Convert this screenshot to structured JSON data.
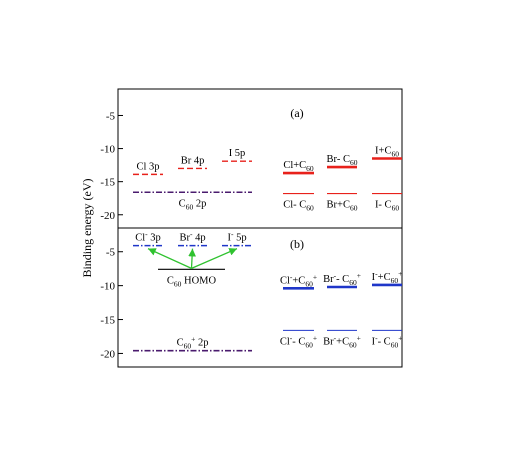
{
  "chart_data": {
    "type": "energy-level-diagram",
    "ylabel": "Binding energy (eV)",
    "panels": [
      {
        "id": "a",
        "label": "(a)",
        "ylim": [
          -22,
          -1
        ],
        "yticks": [
          -5,
          -10,
          -15,
          -20
        ],
        "levels": [
          {
            "name": "Cl 3p",
            "parts": [
              {
                "t": "Cl 3p"
              }
            ],
            "energy": -13.9,
            "color": "#e8211b",
            "style": "dash",
            "col": 0
          },
          {
            "name": "Br 4p",
            "parts": [
              {
                "t": "Br 4p"
              }
            ],
            "energy": -13.0,
            "color": "#e8211b",
            "style": "dash",
            "col": 1
          },
          {
            "name": "I 5p",
            "parts": [
              {
                "t": "I 5p"
              }
            ],
            "energy": -11.9,
            "color": "#e8211b",
            "style": "dash",
            "col": 2
          },
          {
            "name": "C60 2p",
            "parts": [
              {
                "t": "C"
              },
              {
                "t": "60",
                "sub": true
              },
              {
                "t": " 2p"
              }
            ],
            "energy": -16.6,
            "color": "#4a1b6e",
            "style": "dashdot",
            "span": [
              0,
              2
            ],
            "labelBelow": true
          },
          {
            "name": "Cl+C60",
            "parts": [
              {
                "t": "Cl+C"
              },
              {
                "t": "60",
                "sub": true
              }
            ],
            "energy": -13.7,
            "color": "#e8211b",
            "style": "solid-thick",
            "col": 3
          },
          {
            "name": "Br-C60",
            "parts": [
              {
                "t": "Br- C"
              },
              {
                "t": "60",
                "sub": true
              }
            ],
            "energy": -12.8,
            "color": "#e8211b",
            "style": "solid-thick",
            "col": 4
          },
          {
            "name": "I+C60",
            "parts": [
              {
                "t": "I+C"
              },
              {
                "t": "60",
                "sub": true
              }
            ],
            "energy": -11.5,
            "color": "#e8211b",
            "style": "solid-thick",
            "col": 5
          },
          {
            "name": "Cl-C60",
            "parts": [
              {
                "t": "Cl- C"
              },
              {
                "t": "60",
                "sub": true
              }
            ],
            "energy": -16.8,
            "color": "#e8211b",
            "style": "solid-thin",
            "col": 3,
            "labelBelow": true
          },
          {
            "name": "Br+C60",
            "parts": [
              {
                "t": "Br+C"
              },
              {
                "t": "60",
                "sub": true
              }
            ],
            "energy": -16.8,
            "color": "#e8211b",
            "style": "solid-thin",
            "col": 4,
            "labelBelow": true
          },
          {
            "name": "I-C60",
            "parts": [
              {
                "t": "I- C"
              },
              {
                "t": "60",
                "sub": true
              }
            ],
            "energy": -16.8,
            "color": "#e8211b",
            "style": "solid-thin",
            "col": 5,
            "labelBelow": true
          }
        ]
      },
      {
        "id": "b",
        "label": "(b)",
        "ylim": [
          -22,
          -1.5
        ],
        "yticks": [
          -5,
          -10,
          -15,
          -20
        ],
        "levels": [
          {
            "name": "Cl- 3p",
            "parts": [
              {
                "t": "Cl"
              },
              {
                "t": "-",
                "sup": true
              },
              {
                "t": " 3p"
              }
            ],
            "energy": -4.1,
            "color": "#1f36c9",
            "style": "dashdot",
            "col": 0
          },
          {
            "name": "Br- 4p",
            "parts": [
              {
                "t": "Br"
              },
              {
                "t": "-",
                "sup": true
              },
              {
                "t": " 4p"
              }
            ],
            "energy": -4.1,
            "color": "#1f36c9",
            "style": "dashdot",
            "col": 1
          },
          {
            "name": "I- 5p",
            "parts": [
              {
                "t": "I"
              },
              {
                "t": "-",
                "sup": true
              },
              {
                "t": " 5p"
              }
            ],
            "energy": -4.1,
            "color": "#1f36c9",
            "style": "dashdot",
            "col": 2
          },
          {
            "name": "C60 HOMO",
            "parts": [
              {
                "t": "C"
              },
              {
                "t": "60",
                "sub": true
              },
              {
                "t": " HOMO"
              }
            ],
            "energy": -7.6,
            "color": "#000000",
            "style": "solid-thin",
            "col": 1,
            "wide": true,
            "labelBelow": true
          },
          {
            "name": "C60+ 2p",
            "parts": [
              {
                "t": "C"
              },
              {
                "t": "60",
                "sub": true
              },
              {
                "t": "+",
                "sup": true
              },
              {
                "t": " 2p"
              }
            ],
            "energy": -19.6,
            "color": "#4a1b6e",
            "style": "dashdot",
            "span": [
              0,
              2
            ]
          },
          {
            "name": "Cl-+C60+",
            "parts": [
              {
                "t": "Cl"
              },
              {
                "t": "-",
                "sup": true
              },
              {
                "t": "+C"
              },
              {
                "t": "60",
                "sub": true
              },
              {
                "t": "+",
                "sup": true
              }
            ],
            "energy": -10.4,
            "color": "#1f36c9",
            "style": "solid-thick",
            "col": 3
          },
          {
            "name": "Br--C60+",
            "parts": [
              {
                "t": "Br"
              },
              {
                "t": "-",
                "sup": true
              },
              {
                "t": "- C"
              },
              {
                "t": "60",
                "sub": true
              },
              {
                "t": "+",
                "sup": true
              }
            ],
            "energy": -10.2,
            "color": "#1f36c9",
            "style": "solid-thick",
            "col": 4
          },
          {
            "name": "I-+C60+",
            "parts": [
              {
                "t": "I"
              },
              {
                "t": "-",
                "sup": true
              },
              {
                "t": "+C"
              },
              {
                "t": "60",
                "sub": true
              },
              {
                "t": "+",
                "sup": true
              }
            ],
            "energy": -9.9,
            "color": "#1f36c9",
            "style": "solid-thick",
            "col": 5
          },
          {
            "name": "Cl--C60+",
            "parts": [
              {
                "t": "Cl"
              },
              {
                "t": "-",
                "sup": true
              },
              {
                "t": "- C"
              },
              {
                "t": "60",
                "sub": true
              },
              {
                "t": "+",
                "sup": true
              }
            ],
            "energy": -16.6,
            "color": "#1f36c9",
            "style": "solid-thin",
            "col": 3,
            "labelBelow": true
          },
          {
            "name": "Br-+C60+",
            "parts": [
              {
                "t": "Br"
              },
              {
                "t": "-",
                "sup": true
              },
              {
                "t": "+C"
              },
              {
                "t": "60",
                "sub": true
              },
              {
                "t": "+",
                "sup": true
              }
            ],
            "energy": -16.6,
            "color": "#1f36c9",
            "style": "solid-thin",
            "col": 4,
            "labelBelow": true
          },
          {
            "name": "I--C60+",
            "parts": [
              {
                "t": "I"
              },
              {
                "t": "-",
                "sup": true
              },
              {
                "t": "- C"
              },
              {
                "t": "60",
                "sub": true
              },
              {
                "t": "+",
                "sup": true
              }
            ],
            "energy": -16.6,
            "color": "#1f36c9",
            "style": "solid-thin",
            "col": 5,
            "labelBelow": true
          }
        ],
        "arrows": {
          "from": "C60 HOMO",
          "to": [
            "Cl- 3p",
            "Br- 4p",
            "I- 5p"
          ],
          "color": "#2fc22f"
        }
      }
    ]
  }
}
